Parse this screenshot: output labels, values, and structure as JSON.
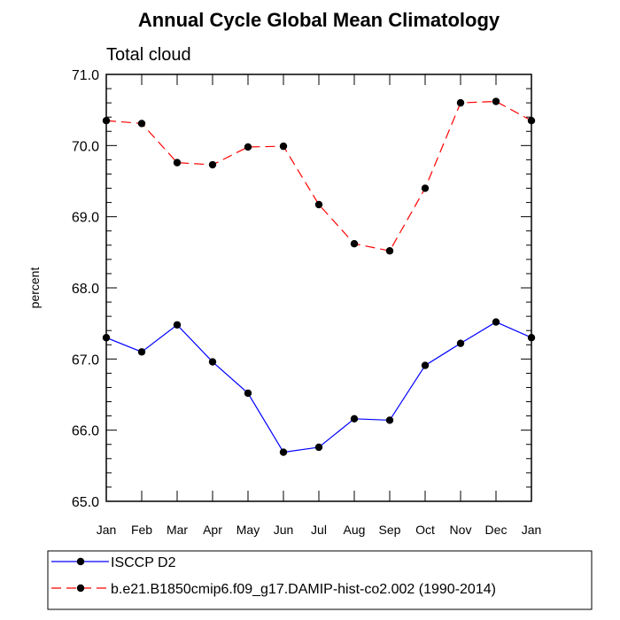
{
  "chart_data": {
    "type": "line",
    "title": "Annual Cycle Global Mean Climatology",
    "subtitle": "Total cloud",
    "xlabel": "",
    "ylabel": "percent",
    "categories": [
      "Jan",
      "Feb",
      "Mar",
      "Apr",
      "May",
      "Jun",
      "Jul",
      "Aug",
      "Sep",
      "Oct",
      "Nov",
      "Dec",
      "Jan"
    ],
    "ylim": [
      65.0,
      71.0
    ],
    "yticks": [
      "65.0",
      "66.0",
      "67.0",
      "68.0",
      "69.0",
      "70.0",
      "71.0"
    ],
    "grid": false,
    "legend_position": "bottom-left, outside plot",
    "series": [
      {
        "name": "ISCCP D2",
        "color": "#0000ff",
        "dash": "solid",
        "marker": "filled-circle",
        "values": [
          67.3,
          67.1,
          67.48,
          66.96,
          66.52,
          65.69,
          65.76,
          66.16,
          66.14,
          66.91,
          67.22,
          67.52,
          67.3
        ]
      },
      {
        "name": "b.e21.B1850cmip6.f09_g17.DAMIP-hist-co2.002 (1990-2014)",
        "color": "#ff0000",
        "dash": "dashed",
        "marker": "filled-circle",
        "values": [
          70.35,
          70.31,
          69.76,
          69.73,
          69.98,
          69.99,
          69.17,
          68.62,
          68.52,
          69.4,
          70.6,
          70.62,
          70.35
        ]
      }
    ]
  }
}
